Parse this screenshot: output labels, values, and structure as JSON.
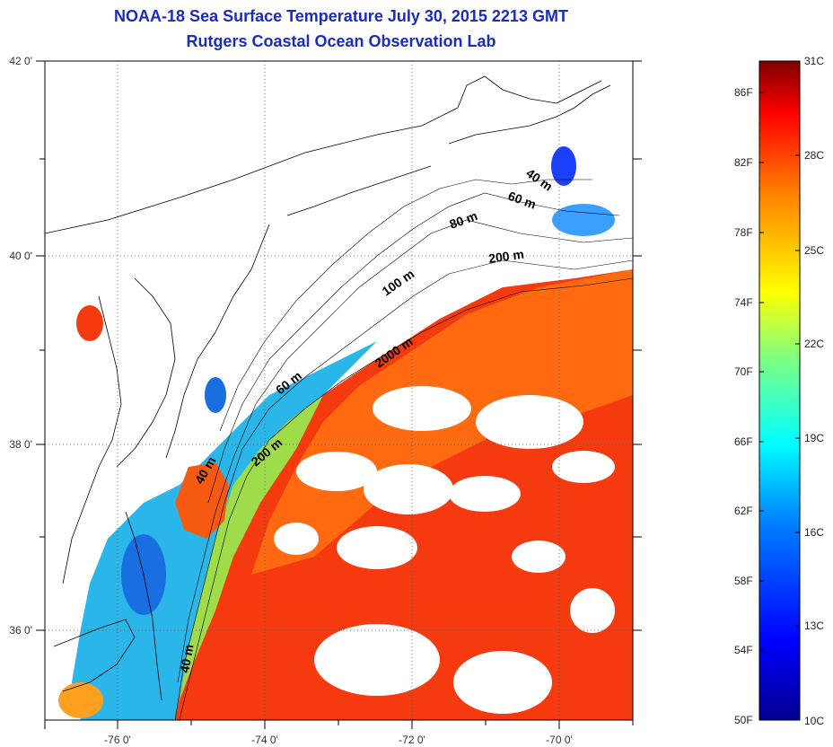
{
  "title": {
    "line1": "NOAA-18 Sea Surface Temperature July 30, 2015 2213 GMT",
    "line2": "Rutgers Coastal Ocean Observation Lab"
  },
  "map": {
    "lon_ticks": [
      "-76 0'",
      "-74 0'",
      "-72 0'",
      "-70 0'"
    ],
    "lat_ticks": [
      "42 0'",
      "40 0'",
      "38 0'",
      "36 0'"
    ],
    "contour_labels": [
      "40 m",
      "60 m",
      "80 m",
      "200 m",
      "100 m",
      "2000 m",
      "60 m",
      "40 m",
      "200 m",
      "40 m"
    ],
    "land_color": "#ffffff",
    "cloud_color": "#ffffff"
  },
  "colorbar": {
    "fahrenheit": [
      "86F",
      "82F",
      "78F",
      "74F",
      "70F",
      "66F",
      "62F",
      "58F",
      "54F",
      "50F"
    ],
    "celsius": [
      "31C",
      "28C",
      "25C",
      "22C",
      "19C",
      "16C",
      "13C",
      "10C"
    ],
    "range_c": [
      10,
      31
    ],
    "colors": [
      "#00008f",
      "#0000ff",
      "#0080ff",
      "#00ffff",
      "#80ff80",
      "#ffff00",
      "#ff8000",
      "#ff0000",
      "#800000"
    ]
  }
}
